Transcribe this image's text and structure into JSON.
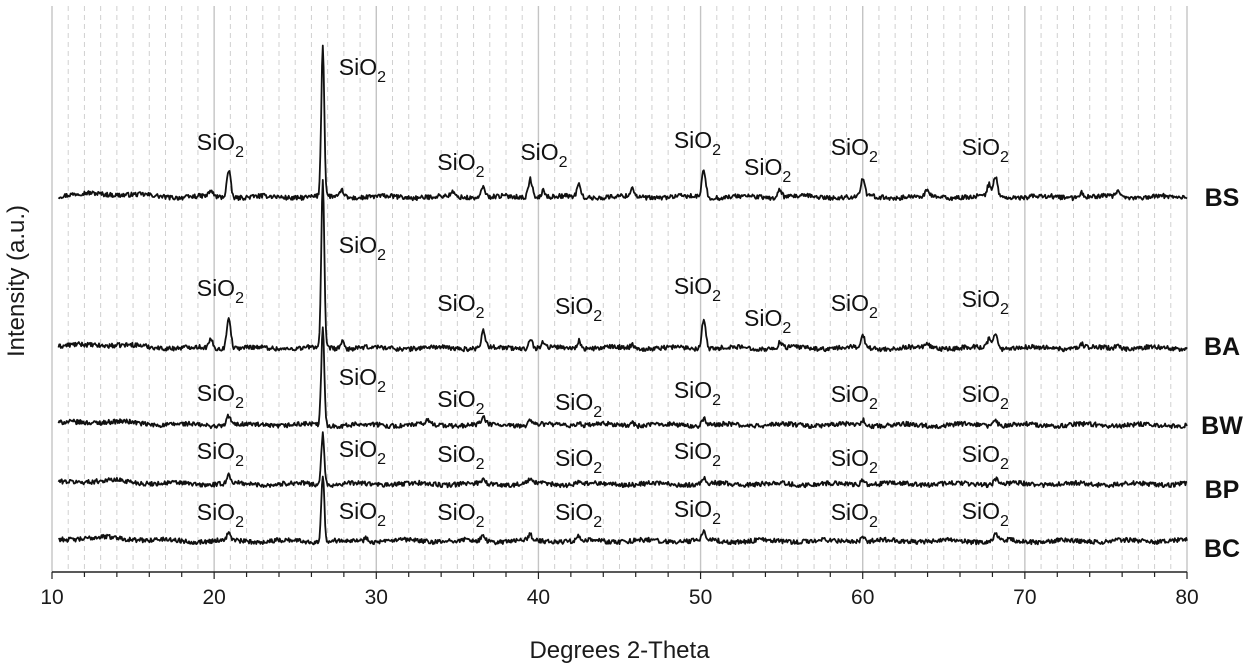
{
  "chart_data": {
    "type": "line",
    "xlabel": "Degrees 2-Theta",
    "ylabel": "Intensity (a.u.)",
    "xlim": [
      10,
      80
    ],
    "xticks": [
      "10",
      "20",
      "30",
      "40",
      "50",
      "60",
      "70",
      "80"
    ],
    "grid": "vertical dashed gridlines every 1 degree, solid every 10 degrees",
    "series": [
      {
        "name": "BS",
        "baseline": 0.5,
        "peaks": [
          [
            19.8,
            0.2
          ],
          [
            20.9,
            1.0
          ],
          [
            26.7,
            5.6
          ],
          [
            27.9,
            0.25
          ],
          [
            34.7,
            0.15
          ],
          [
            36.6,
            0.4
          ],
          [
            39.5,
            0.7
          ],
          [
            40.3,
            0.25
          ],
          [
            42.5,
            0.45
          ],
          [
            45.8,
            0.3
          ],
          [
            50.2,
            1.0
          ],
          [
            54.9,
            0.3
          ],
          [
            60.0,
            0.65
          ],
          [
            64.0,
            0.2
          ],
          [
            67.8,
            0.45
          ],
          [
            68.2,
            0.75
          ],
          [
            73.5,
            0.2
          ],
          [
            75.7,
            0.2
          ]
        ]
      },
      {
        "name": "BA",
        "baseline": 0.4,
        "peaks": [
          [
            19.8,
            0.3
          ],
          [
            20.9,
            1.2
          ],
          [
            26.7,
            6.2
          ],
          [
            27.9,
            0.25
          ],
          [
            36.6,
            0.65
          ],
          [
            39.5,
            0.4
          ],
          [
            40.3,
            0.2
          ],
          [
            42.5,
            0.3
          ],
          [
            45.8,
            0.15
          ],
          [
            50.2,
            1.15
          ],
          [
            54.9,
            0.2
          ],
          [
            60.0,
            0.45
          ],
          [
            64.0,
            0.15
          ],
          [
            67.8,
            0.35
          ],
          [
            68.2,
            0.55
          ],
          [
            73.5,
            0.15
          ],
          [
            75.7,
            0.15
          ]
        ]
      },
      {
        "name": "BW",
        "baseline": 0.4,
        "peaks": [
          [
            20.9,
            0.35
          ],
          [
            26.7,
            3.6
          ],
          [
            33.2,
            0.15
          ],
          [
            36.6,
            0.25
          ],
          [
            39.5,
            0.2
          ],
          [
            42.5,
            0.15
          ],
          [
            45.8,
            0.12
          ],
          [
            50.2,
            0.25
          ],
          [
            60.0,
            0.2
          ],
          [
            68.2,
            0.2
          ]
        ]
      },
      {
        "name": "BP",
        "baseline": 0.4,
        "peaks": [
          [
            20.9,
            0.3
          ],
          [
            26.7,
            1.9
          ],
          [
            36.6,
            0.15
          ],
          [
            39.5,
            0.15
          ],
          [
            42.5,
            0.12
          ],
          [
            50.2,
            0.2
          ],
          [
            60.0,
            0.15
          ],
          [
            68.2,
            0.2
          ]
        ]
      },
      {
        "name": "BC",
        "baseline": 0.3,
        "peaks": [
          [
            20.9,
            0.25
          ],
          [
            26.7,
            2.5
          ],
          [
            29.4,
            0.15
          ],
          [
            36.6,
            0.2
          ],
          [
            39.5,
            0.2
          ],
          [
            42.5,
            0.15
          ],
          [
            50.2,
            0.3
          ],
          [
            60.0,
            0.15
          ],
          [
            68.2,
            0.25
          ]
        ]
      }
    ],
    "annotations": [
      {
        "text": "SiO",
        "sub": "2",
        "series": "BS",
        "x": 20.9
      },
      {
        "text": "SiO",
        "sub": "2",
        "series": "BS",
        "x": 26.7
      },
      {
        "text": "SiO",
        "sub": "2",
        "series": "BS",
        "x": 36.6
      },
      {
        "text": "SiO",
        "sub": "2",
        "series": "BS",
        "x": 39.5
      },
      {
        "text": "SiO",
        "sub": "2",
        "series": "BS",
        "x": 50.2
      },
      {
        "text": "SiO",
        "sub": "2",
        "series": "BS",
        "x": 54.9
      },
      {
        "text": "SiO",
        "sub": "2",
        "series": "BS",
        "x": 60.0
      },
      {
        "text": "SiO",
        "sub": "2",
        "series": "BS",
        "x": 68.2
      },
      {
        "text": "SiO",
        "sub": "2",
        "series": "BA",
        "x": 20.9
      },
      {
        "text": "SiO",
        "sub": "2",
        "series": "BA",
        "x": 26.7
      },
      {
        "text": "SiO",
        "sub": "2",
        "series": "BA",
        "x": 36.6
      },
      {
        "text": "SiO",
        "sub": "2",
        "series": "BA",
        "x": 42.5
      },
      {
        "text": "SiO",
        "sub": "2",
        "series": "BA",
        "x": 50.2
      },
      {
        "text": "SiO",
        "sub": "2",
        "series": "BA",
        "x": 54.9
      },
      {
        "text": "SiO",
        "sub": "2",
        "series": "BA",
        "x": 60.0
      },
      {
        "text": "SiO",
        "sub": "2",
        "series": "BA",
        "x": 68.2
      },
      {
        "text": "SiO",
        "sub": "2",
        "series": "BW",
        "x": 20.9
      },
      {
        "text": "SiO",
        "sub": "2",
        "series": "BW",
        "x": 26.7
      },
      {
        "text": "SiO",
        "sub": "2",
        "series": "BW",
        "x": 36.6
      },
      {
        "text": "SiO",
        "sub": "2",
        "series": "BW",
        "x": 42.5
      },
      {
        "text": "SiO",
        "sub": "2",
        "series": "BW",
        "x": 50.2
      },
      {
        "text": "SiO",
        "sub": "2",
        "series": "BW",
        "x": 60.0
      },
      {
        "text": "SiO",
        "sub": "2",
        "series": "BW",
        "x": 68.2
      },
      {
        "text": "SiO",
        "sub": "2",
        "series": "BP",
        "x": 20.9
      },
      {
        "text": "SiO",
        "sub": "2",
        "series": "BP",
        "x": 26.7
      },
      {
        "text": "SiO",
        "sub": "2",
        "series": "BP",
        "x": 36.6
      },
      {
        "text": "SiO",
        "sub": "2",
        "series": "BP",
        "x": 42.5
      },
      {
        "text": "SiO",
        "sub": "2",
        "series": "BP",
        "x": 50.2
      },
      {
        "text": "SiO",
        "sub": "2",
        "series": "BP",
        "x": 60.0
      },
      {
        "text": "SiO",
        "sub": "2",
        "series": "BP",
        "x": 68.2
      },
      {
        "text": "SiO",
        "sub": "2",
        "series": "BC",
        "x": 20.9
      },
      {
        "text": "SiO",
        "sub": "2",
        "series": "BC",
        "x": 26.7
      },
      {
        "text": "SiO",
        "sub": "2",
        "series": "BC",
        "x": 36.6
      },
      {
        "text": "SiO",
        "sub": "2",
        "series": "BC",
        "x": 42.5
      },
      {
        "text": "SiO",
        "sub": "2",
        "series": "BC",
        "x": 50.2
      },
      {
        "text": "SiO",
        "sub": "2",
        "series": "BC",
        "x": 60.0
      },
      {
        "text": "SiO",
        "sub": "2",
        "series": "BC",
        "x": 68.2
      }
    ]
  },
  "colors": {
    "line": "#111111",
    "grid": "#d0d0d0",
    "grid_major": "#c4c4c4",
    "axis": "#222222"
  }
}
